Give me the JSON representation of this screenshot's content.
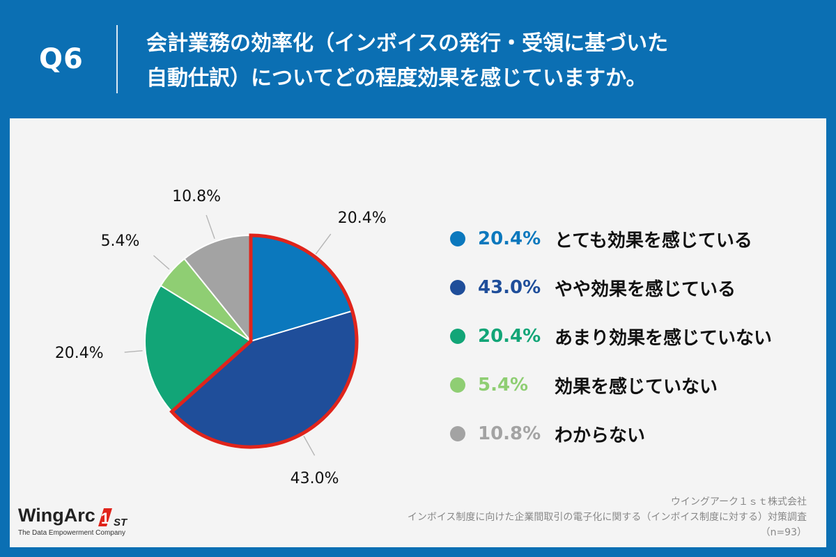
{
  "header": {
    "q_label": "Q6",
    "title_line1": "会計業務の効率化（インボイスの発行・受領に基づいた",
    "title_line2": "自動仕訳）についてどの程度効果を感じていますか。"
  },
  "colors": {
    "header_bg": "#0b6fb3",
    "highlight_border": "#e0241b"
  },
  "chart_data": {
    "type": "pie",
    "title": "会計業務の効率化（インボイスの発行・受領に基づいた自動仕訳）についてどの程度効果を感じていますか。",
    "slices": [
      {
        "label": "とても効果を感じている",
        "value": 20.4,
        "display": "20.4%",
        "color": "#0b78bd",
        "highlighted": true
      },
      {
        "label": "やや効果を感じている",
        "value": 43.0,
        "display": "43.0%",
        "color": "#1f4e9a",
        "highlighted": true
      },
      {
        "label": "あまり効果を感じていない",
        "value": 20.4,
        "display": "20.4%",
        "color": "#12a577",
        "highlighted": false
      },
      {
        "label": "効果を感じていない",
        "value": 5.4,
        "display": "5.4%",
        "color": "#8fce73",
        "highlighted": false
      },
      {
        "label": "わからない",
        "value": 10.8,
        "display": "10.8%",
        "color": "#a3a3a3",
        "highlighted": false
      }
    ],
    "legend_position": "right"
  },
  "legend": {
    "items": [
      {
        "pct": "20.4%",
        "label": "とても効果を感じている",
        "color": "#0b78bd"
      },
      {
        "pct": "43.0%",
        "label": "やや効果を感じている",
        "color": "#1f4e9a"
      },
      {
        "pct": "20.4%",
        "label": "あまり効果を感じていない",
        "color": "#12a577"
      },
      {
        "pct": "5.4%",
        "label": "効果を感じていない",
        "color": "#8fce73"
      },
      {
        "pct": "10.8%",
        "label": "わからない",
        "color": "#a3a3a3"
      }
    ]
  },
  "logo": {
    "name": "WingArc",
    "badge_digit": "1",
    "badge_suffix": "ST",
    "tagline": "The Data Empowerment Company"
  },
  "source": {
    "line1": "ウイングアーク１ｓｔ株式会社",
    "line2": "インボイス制度に向けた企業間取引の電子化に関する（インボイス制度に対する）対策調査",
    "line3": "（n=93）"
  }
}
